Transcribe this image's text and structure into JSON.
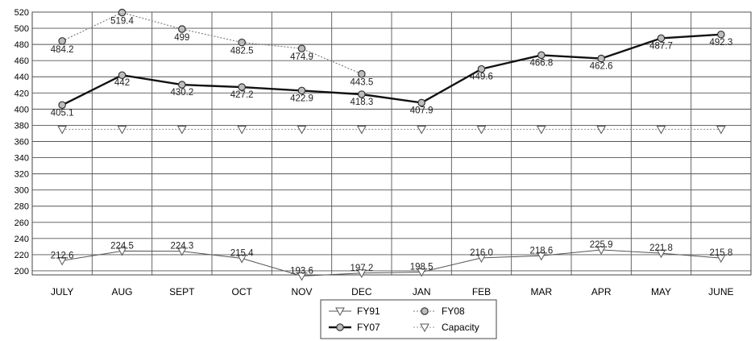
{
  "chart_data": {
    "type": "line",
    "title": "",
    "xlabel": "",
    "ylabel": "",
    "categories": [
      "JULY",
      "AUG",
      "SEPT",
      "OCT",
      "NOV",
      "DEC",
      "JAN",
      "FEB",
      "MAR",
      "APR",
      "MAY",
      "JUNE"
    ],
    "ylim": [
      195,
      520
    ],
    "yticks": [
      200,
      220,
      240,
      260,
      280,
      300,
      320,
      340,
      360,
      380,
      400,
      420,
      440,
      460,
      480,
      500,
      520
    ],
    "grid": true,
    "legend_position": "bottom",
    "series": [
      {
        "name": "FY91",
        "color": "#555555",
        "style": "thin",
        "marker": "triangle-down",
        "values": [
          212.6,
          224.5,
          224.3,
          215.4,
          193.6,
          197.2,
          198.5,
          216.0,
          218.6,
          225.9,
          221.8,
          215.8
        ],
        "labels": [
          "212.6",
          "224.5",
          "224.3",
          "215.4",
          "193.6",
          "197.2",
          "198.5",
          "216.0",
          "218.6",
          "225.9",
          "221.8",
          "215.8"
        ]
      },
      {
        "name": "FY08",
        "color": "#777777",
        "style": "dotted",
        "marker": "circle",
        "values": [
          484.2,
          519.4,
          499,
          482.5,
          474.9,
          443.5,
          null,
          null,
          null,
          null,
          null,
          null
        ],
        "labels": [
          "484.2",
          "519.4",
          "499",
          "482.5",
          "474.9",
          "443.5",
          "",
          "",
          "",
          "",
          "",
          ""
        ]
      },
      {
        "name": "FY07",
        "color": "#111111",
        "style": "thick",
        "marker": "circle",
        "values": [
          405.1,
          442,
          430.2,
          427.2,
          422.9,
          418.3,
          407.9,
          449.6,
          466.8,
          462.6,
          487.7,
          492.3
        ],
        "labels": [
          "405.1",
          "442",
          "430.2",
          "427.2",
          "422.9",
          "418.3",
          "407.9",
          "449.6",
          "466.8",
          "462.6",
          "487.7",
          "492.3"
        ]
      },
      {
        "name": "Capacity",
        "color": "#999999",
        "style": "dotted",
        "marker": "triangle-down",
        "values": [
          375,
          375,
          375,
          375,
          375,
          375,
          375,
          375,
          375,
          375,
          375,
          375
        ],
        "labels": [
          "",
          "",
          "",
          "",
          "",
          "",
          "",
          "",
          "",
          "",
          "",
          ""
        ]
      }
    ]
  }
}
